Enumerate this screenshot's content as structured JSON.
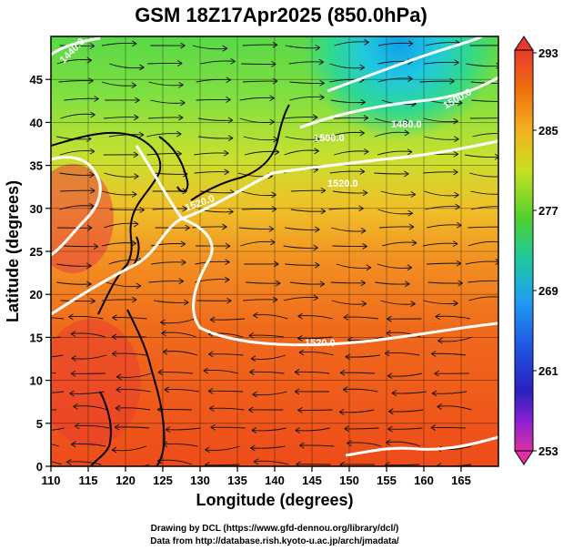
{
  "title": "GSM 18Z17Apr2025 (850.0hPa)",
  "x_axis": {
    "label": "Longitude (degrees)",
    "ticks": [
      "110",
      "115",
      "120",
      "125",
      "130",
      "135",
      "140",
      "145",
      "150",
      "155",
      "160",
      "165"
    ],
    "range": [
      110,
      170
    ]
  },
  "y_axis": {
    "label": "Latitude  (degrees)",
    "ticks": [
      "0",
      "5",
      "10",
      "15",
      "20",
      "25",
      "30",
      "35",
      "40",
      "45"
    ],
    "range": [
      0,
      50
    ]
  },
  "colorbar": {
    "ticks": [
      "293",
      "285",
      "277",
      "269",
      "261",
      "253"
    ],
    "range": [
      253,
      293
    ],
    "colors": [
      "#e23a86",
      "#2a1fd0",
      "#22a6e8",
      "#30cc40",
      "#9ee62a",
      "#f0c020",
      "#f07010",
      "#e83020"
    ]
  },
  "contour_labels": [
    "1440.0",
    "1480.0",
    "1500.0",
    "1520.0",
    "1520.0",
    "1500.0",
    "1520.0"
  ],
  "credits": {
    "line1": "Drawing by DCL (https://www.gfd-dennou.org/library/dcl/)",
    "line2": "Data from http://database.rish.kyoto-u.ac.jp/arch/jmadata/"
  }
}
